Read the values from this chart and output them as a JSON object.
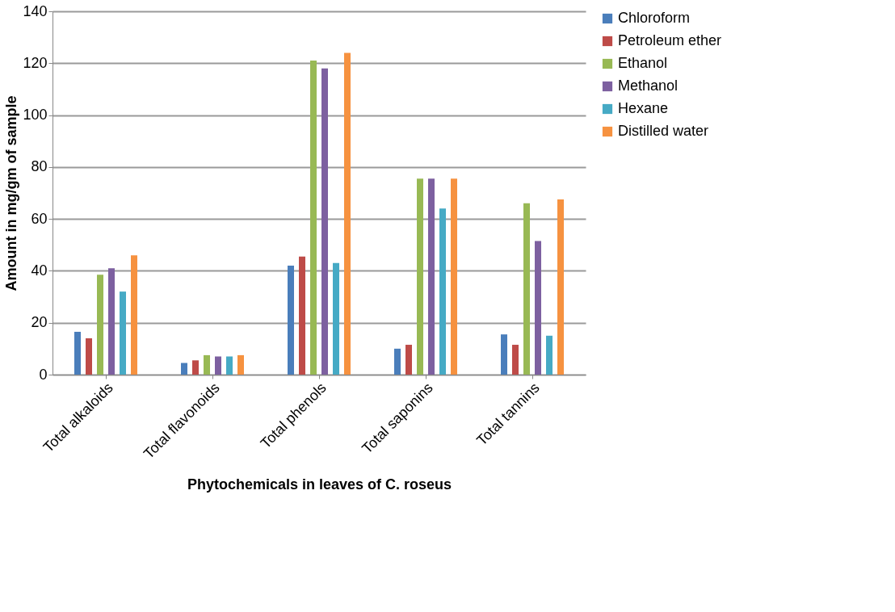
{
  "chart_data": {
    "type": "bar",
    "xlabel": "Phytochemicals in leaves of C. roseus",
    "ylabel": "Amount in mg/gm of sample",
    "categories": [
      "Total alkaloids",
      "Total flavonoids",
      "Total phenols",
      "Total saponins",
      "Total tannins"
    ],
    "series": [
      {
        "name": "Chloroform",
        "color": "#4a7ebb",
        "values": [
          16.5,
          4.5,
          42,
          10,
          15.5
        ]
      },
      {
        "name": "Petroleum ether",
        "color": "#be4b48",
        "values": [
          14,
          5.5,
          45.5,
          11.5,
          11.5
        ]
      },
      {
        "name": "Ethanol",
        "color": "#98b954",
        "values": [
          38.5,
          7.5,
          121,
          75.5,
          66
        ]
      },
      {
        "name": "Methanol",
        "color": "#7d60a0",
        "values": [
          41,
          7,
          118,
          75.5,
          51.5
        ]
      },
      {
        "name": "Hexane",
        "color": "#46aac5",
        "values": [
          32,
          7,
          43,
          64,
          15
        ]
      },
      {
        "name": "Distilled water",
        "color": "#f69240",
        "values": [
          46,
          7.5,
          124,
          75.5,
          67.5
        ]
      }
    ],
    "ylim": [
      0,
      140
    ],
    "yticks": [
      0,
      20,
      40,
      60,
      80,
      100,
      120,
      140
    ],
    "grid": "y",
    "legend": "right"
  }
}
